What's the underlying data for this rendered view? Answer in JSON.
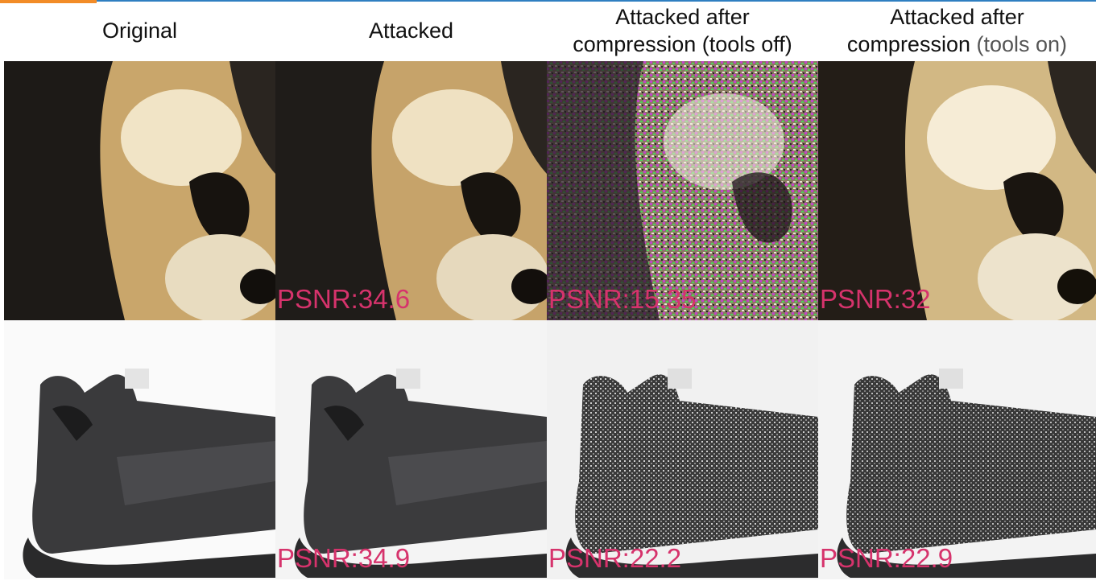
{
  "headers": {
    "original": "Original",
    "attacked": "Attacked",
    "tools_off_line1": "Attacked after",
    "tools_off_line2": "compression (tools off)",
    "tools_on_line1": "Attacked after",
    "tools_on_line2_a": "compression ",
    "tools_on_line2_b": "(tools on)"
  },
  "rows": [
    {
      "subject": "panda",
      "psnr": [
        "PSNR:34.6",
        "PSNR:15.35",
        "PSNR:32"
      ]
    },
    {
      "subject": "sneaker",
      "psnr": [
        "PSNR:34.9",
        "PSNR:22.2",
        "PSNR:22.9"
      ]
    }
  ],
  "colors": {
    "psnr_text": "#d6336c",
    "accent_line": "#2f7fc1",
    "accent_orange": "#f28c28"
  }
}
